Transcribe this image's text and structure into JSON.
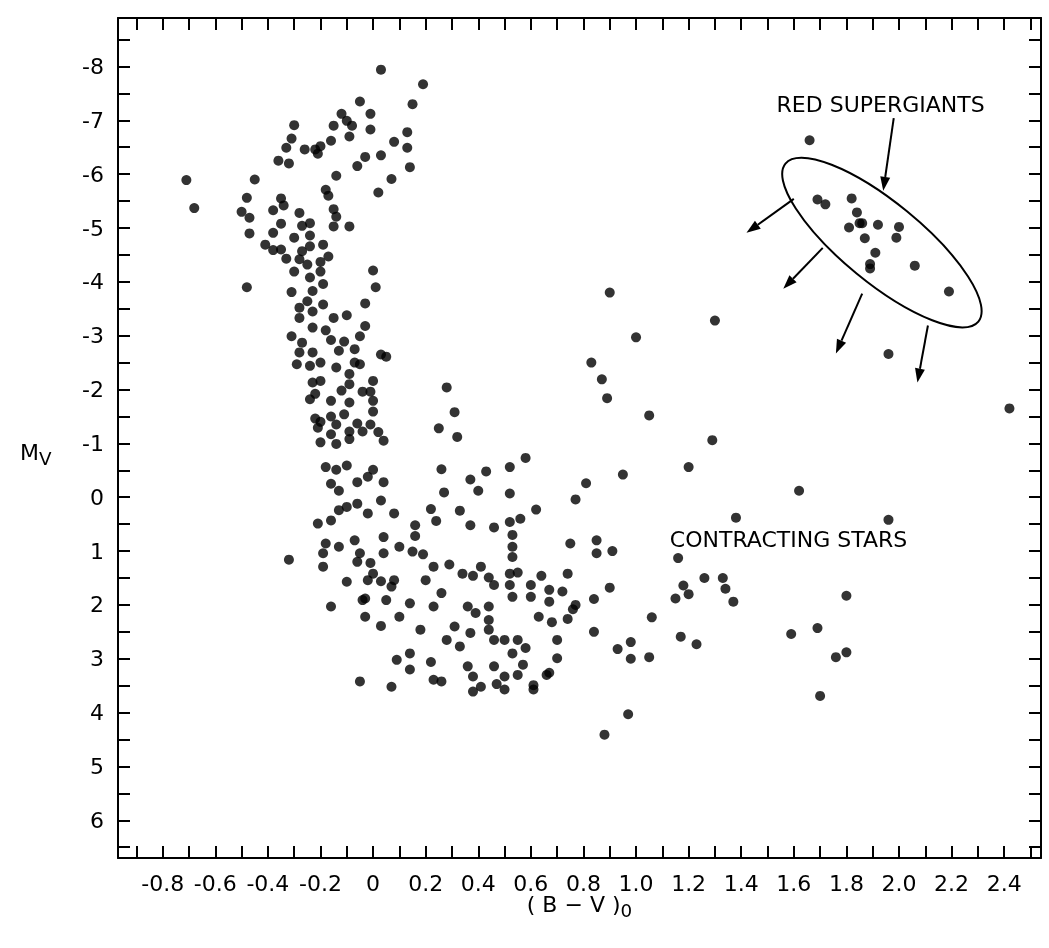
{
  "chart_data": {
    "type": "scatter",
    "xlabel": "( B − V )$_{0}$",
    "ylabel": "M$_{V}$",
    "color": "#000000",
    "marker": "circle",
    "annotations": [
      "RED SUPERGIANTS",
      "CONTRACTING STARS"
    ],
    "xlim": [
      -0.97,
      2.54
    ],
    "ylim": [
      6.7,
      -8.9
    ],
    "xticks": [
      {
        "value": -0.9,
        "label": null
      },
      -0.8,
      {
        "value": -0.7,
        "label": null
      },
      -0.6,
      {
        "value": -0.5,
        "label": null
      },
      -0.4,
      {
        "value": -0.3,
        "label": null
      },
      -0.2,
      {
        "value": -0.1,
        "label": null
      },
      0,
      {
        "value": 0.1,
        "label": null
      },
      0.2,
      {
        "value": 0.3,
        "label": null
      },
      0.4,
      {
        "value": 0.5,
        "label": null
      },
      0.6,
      {
        "value": 0.7,
        "label": null
      },
      0.8,
      {
        "value": 0.9,
        "label": null
      },
      {
        "value": 1,
        "label": "1.0"
      },
      {
        "value": 1.1,
        "label": null
      },
      1.2,
      {
        "value": 1.3,
        "label": null
      },
      1.4,
      {
        "value": 1.5,
        "label": null
      },
      1.6,
      {
        "value": 1.7,
        "label": null
      },
      1.8,
      {
        "value": 1.9,
        "label": null
      },
      {
        "value": 2,
        "label": "2.0"
      },
      {
        "value": 2.1,
        "label": null
      },
      2.2,
      {
        "value": 2.3,
        "label": null
      },
      2.4,
      {
        "value": 2.5,
        "label": null
      }
    ],
    "yticks": [
      {
        "value": -8.5,
        "label": null
      },
      -8,
      {
        "value": -7.5,
        "label": null
      },
      -7,
      {
        "value": -6.5,
        "label": null
      },
      -6,
      {
        "value": -5.5,
        "label": null
      },
      -5,
      {
        "value": -4.5,
        "label": null
      },
      -4,
      {
        "value": -3.5,
        "label": null
      },
      -3,
      {
        "value": -2.5,
        "label": null
      },
      -2,
      {
        "value": -1.5,
        "label": null
      },
      -1,
      {
        "value": -0.5,
        "label": null
      },
      0,
      {
        "value": 0.5,
        "label": null
      },
      1,
      {
        "value": 1.5,
        "label": null
      },
      2,
      {
        "value": 2.5,
        "label": null
      },
      3,
      {
        "value": 3.5,
        "label": null
      },
      4,
      {
        "value": 4.5,
        "label": null
      },
      5,
      {
        "value": 5.5,
        "label": null
      },
      6,
      {
        "value": 6.5,
        "label": null
      }
    ],
    "x": [
      0.03,
      0.19,
      -0.05,
      0.15,
      -0.12,
      -0.01,
      -0.1,
      -0.08,
      -0.3,
      -0.15,
      -0.01,
      0.13,
      -0.31,
      -0.09,
      -0.16,
      0.08,
      -0.33,
      -0.26,
      -0.22,
      -0.2,
      -0.21,
      0.13,
      0.03,
      -0.03,
      -0.36,
      -0.32,
      -0.06,
      0.14,
      -0.71,
      -0.45,
      -0.14,
      0.07,
      0.02,
      -0.18,
      -0.17,
      -0.68,
      -0.48,
      -0.5,
      -0.47,
      -0.47,
      -0.38,
      -0.35,
      -0.34,
      -0.35,
      -0.28,
      -0.38,
      -0.27,
      -0.24,
      -0.15,
      -0.14,
      -0.15,
      -0.09,
      -0.41,
      -0.38,
      -0.35,
      -0.33,
      -0.3,
      -0.24,
      -0.27,
      -0.24,
      -0.28,
      -0.25,
      -0.19,
      -0.17,
      -0.2,
      -0.3,
      -0.24,
      -0.2,
      -0.48,
      0,
      0.01,
      -0.19,
      -0.31,
      -0.23,
      -0.25,
      -0.28,
      -0.19,
      -0.23,
      -0.15,
      -0.1,
      -0.03,
      -0.28,
      -0.23,
      -0.18,
      -0.03,
      -0.31,
      -0.27,
      -0.16,
      -0.11,
      -0.05,
      -0.07,
      0.03,
      0.05,
      -0.28,
      -0.23,
      -0.13,
      -0.29,
      -0.24,
      -0.2,
      -0.14,
      -0.07,
      -0.05,
      0.28,
      0.25,
      -0.09,
      0,
      -0.23,
      -0.2,
      -0.09,
      -0.24,
      -0.22,
      -0.16,
      -0.12,
      -0.09,
      -0.04,
      -0.01,
      0,
      0,
      -0.22,
      -0.2,
      -0.16,
      -0.11,
      -0.06,
      -0.01,
      -0.21,
      -0.16,
      -0.14,
      -0.09,
      -0.04,
      0.02,
      0.04,
      -0.2,
      -0.14,
      -0.09,
      -0.18,
      -0.14,
      -0.1,
      0,
      0.04,
      -0.16,
      -0.13,
      -0.06,
      -0.02,
      0.03,
      0.08,
      -0.21,
      -0.16,
      -0.13,
      -0.1,
      -0.06,
      -0.02,
      -0.18,
      -0.13,
      -0.19,
      -0.19,
      -0.32,
      -0.07,
      -0.05,
      -0.06,
      -0.01,
      0.04,
      0.04,
      0,
      -0.02,
      0.03,
      0.08,
      0.1,
      0.15,
      0.19,
      0.16,
      0.16,
      0.22,
      0.24,
      0.26,
      0.27,
      0.32,
      0.31,
      0.37,
      0.4,
      0.43,
      0.52,
      0.52,
      0.58,
      0.33,
      0.37,
      0.46,
      0.52,
      0.53,
      0.53,
      0.53,
      0.56,
      0.62,
      0.81,
      0.77,
      0.75,
      0.85,
      0.85,
      0.23,
      0.29,
      0.34,
      0.38,
      0.41,
      0.44,
      0.46,
      0.52,
      0.55,
      0.52,
      0.53,
      0.6,
      0.6,
      0.64,
      0.67,
      0.67,
      0.72,
      0.74,
      0.76,
      0.77,
      0.84,
      0.84,
      0.74,
      0.63,
      0.68,
      0.7,
      0.7,
      0.66,
      0.61,
      0.61,
      -0.05,
      0.07,
      -0.16,
      -0.03,
      0.03,
      0.05,
      0.1,
      0.14,
      0.18,
      0.14,
      0.09,
      0.14,
      0.22,
      0.23,
      0.26,
      0.28,
      0.31,
      0.33,
      0.36,
      0.38,
      0.38,
      0.41,
      0.37,
      0.36,
      0.39,
      0.44,
      0.44,
      0.44,
      0.46,
      0.5,
      0.53,
      0.55,
      0.58,
      0.46,
      0.5,
      0.5,
      0.55,
      0.57,
      0.47,
      0.67,
      0.26,
      0.2,
      0.23,
      -0.04,
      0.07,
      -0.1,
      -0.03,
      0.9,
      1.3,
      1.0,
      0.83,
      0.87,
      0.89,
      1.05,
      1.29,
      1.2,
      0.95,
      1.62,
      2.42,
      1.96,
      1.96,
      1.38,
      1.16,
      1.26,
      1.33,
      1.34,
      1.37,
      1.18,
      1.2,
      1.15,
      1.06,
      1.17,
      1.23,
      1.05,
      0.98,
      0.98,
      0.93,
      0.9,
      1.8,
      1.69,
      1.59,
      1.76,
      1.8,
      1.7,
      0.97,
      0.88,
      0.91,
      1.66,
      1.69,
      1.72,
      1.82,
      1.84,
      1.85,
      1.86,
      1.81,
      1.92,
      2.0,
      1.87,
      1.99,
      1.91,
      1.89,
      1.89,
      2.06,
      2.19
    ],
    "values": [
      -7.94,
      -7.67,
      -7.35,
      -7.3,
      -7.12,
      -7.12,
      -6.99,
      -6.9,
      -6.91,
      -6.9,
      -6.83,
      -6.78,
      -6.66,
      -6.7,
      -6.62,
      -6.6,
      -6.49,
      -6.46,
      -6.46,
      -6.52,
      -6.38,
      -6.49,
      -6.35,
      -6.32,
      -6.25,
      -6.2,
      -6.15,
      -6.13,
      -5.89,
      -5.9,
      -5.97,
      -5.91,
      -5.66,
      -5.71,
      -5.6,
      -5.37,
      -5.56,
      -5.3,
      -5.19,
      -4.9,
      -5.33,
      -5.55,
      -5.42,
      -5.08,
      -5.28,
      -4.91,
      -5.04,
      -5.09,
      -5.35,
      -5.21,
      -5.03,
      -5.03,
      -4.69,
      -4.59,
      -4.6,
      -4.43,
      -4.82,
      -4.86,
      -4.57,
      -4.66,
      -4.42,
      -4.32,
      -4.69,
      -4.47,
      -4.37,
      -4.19,
      -4.08,
      -4.19,
      -3.9,
      -4.21,
      -3.9,
      -3.96,
      -3.81,
      -3.83,
      -3.64,
      -3.52,
      -3.58,
      -3.45,
      -3.33,
      -3.38,
      -3.6,
      -3.33,
      -3.15,
      -3.1,
      -3.18,
      -2.99,
      -2.87,
      -2.92,
      -2.89,
      -2.99,
      -2.75,
      -2.65,
      -2.61,
      -2.69,
      -2.69,
      -2.72,
      -2.47,
      -2.44,
      -2.5,
      -2.41,
      -2.5,
      -2.47,
      -2.04,
      -1.28,
      -2.29,
      -2.16,
      -2.13,
      -2.16,
      -2.1,
      -1.82,
      -1.92,
      -1.79,
      -1.98,
      -1.76,
      -1.96,
      -1.96,
      -1.79,
      -1.59,
      -1.46,
      -1.4,
      -1.5,
      -1.54,
      -1.37,
      -1.35,
      -1.29,
      -1.17,
      -1.35,
      -1.22,
      -1.22,
      -1.21,
      -1.05,
      -1.02,
      -0.99,
      -1.08,
      -0.56,
      -0.51,
      -0.59,
      -0.51,
      -0.28,
      -0.25,
      -0.12,
      -0.28,
      -0.38,
      0.06,
      0.3,
      0.49,
      0.43,
      0.24,
      0.18,
      0.12,
      0.3,
      0.86,
      0.92,
      1.04,
      1.29,
      1.16,
      0.8,
      1.04,
      1.2,
      1.22,
      0.74,
      1.04,
      1.42,
      1.54,
      1.56,
      1.54,
      0.92,
      1.01,
      1.06,
      0.52,
      0.72,
      0.22,
      0.44,
      -0.52,
      -0.09,
      -1.12,
      -1.58,
      -0.33,
      -0.12,
      -0.48,
      -0.56,
      -0.07,
      -0.73,
      0.25,
      0.52,
      0.56,
      0.46,
      0.7,
      0.92,
      1.11,
      0.4,
      0.23,
      -0.26,
      0.04,
      0.86,
      0.8,
      1.04,
      1.29,
      1.25,
      1.42,
      1.46,
      1.29,
      1.49,
      1.63,
      1.42,
      1.4,
      1.63,
      1.85,
      1.63,
      1.85,
      1.46,
      1.72,
      1.94,
      1.75,
      1.42,
      2.08,
      2.0,
      1.89,
      2.5,
      2.26,
      2.22,
      2.32,
      2.65,
      2.99,
      3.3,
      3.49,
      3.57,
      3.42,
      3.52,
      2.03,
      2.22,
      2.39,
      1.91,
      2.22,
      1.97,
      2.46,
      2.9,
      3.02,
      3.2,
      3.06,
      3.39,
      3.42,
      2.65,
      2.4,
      2.77,
      3.14,
      3.33,
      3.61,
      3.52,
      2.52,
      2.03,
      2.15,
      2.03,
      2.28,
      2.46,
      2.65,
      2.65,
      2.9,
      2.65,
      2.8,
      3.14,
      3.33,
      3.57,
      3.3,
      3.11,
      3.47,
      3.26,
      1.78,
      1.54,
      2.03,
      1.91,
      1.66,
      1.57,
      1.88,
      -3.8,
      -3.28,
      -2.97,
      -2.5,
      -2.19,
      -1.84,
      -1.52,
      -1.06,
      -0.56,
      -0.42,
      -0.12,
      -1.65,
      -2.66,
      0.42,
      0.38,
      1.13,
      1.5,
      1.5,
      1.7,
      1.94,
      1.64,
      1.8,
      1.88,
      2.23,
      2.59,
      2.73,
      2.97,
      3.0,
      2.69,
      2.82,
      1.68,
      1.83,
      2.43,
      2.54,
      2.97,
      2.88,
      3.69,
      4.03,
      4.41,
      1.0,
      -6.63,
      -5.53,
      -5.44,
      -5.55,
      -5.29,
      -5.09,
      -5.09,
      -5.01,
      -5.06,
      -5.02,
      -4.81,
      -4.82,
      -4.54,
      -4.33,
      -4.25,
      -4.3,
      -3.82
    ]
  }
}
